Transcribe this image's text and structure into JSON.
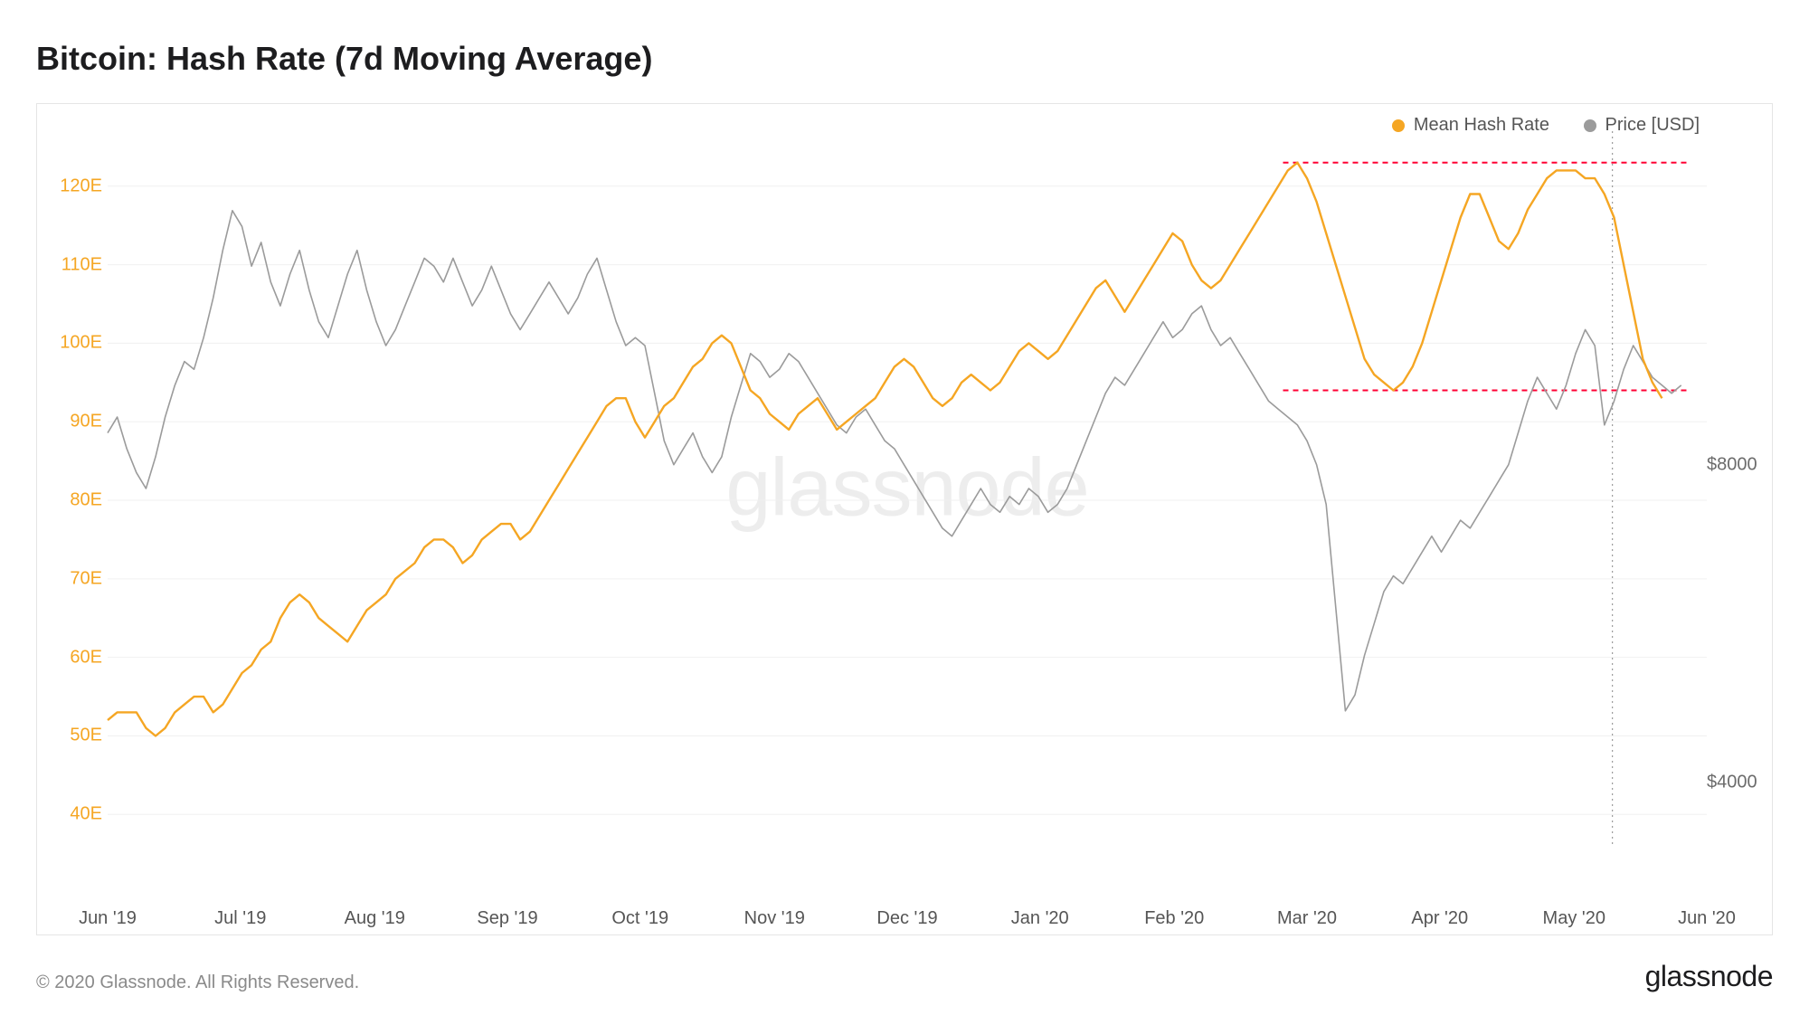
{
  "title": "Bitcoin: Hash Rate (7d Moving Average)",
  "copyright": "© 2020 Glassnode. All Rights Reserved.",
  "logo": "glassnode",
  "watermark": "glassnode",
  "legend": {
    "hash_label": "Mean Hash Rate",
    "hash_color": "#f5a623",
    "price_label": "Price [USD]",
    "price_color": "#9b9b9b"
  },
  "chart": {
    "background_color": "#ffffff",
    "border_color": "#e5e5e5",
    "grid_color": "#f0f0f0",
    "y_left": {
      "min": 36,
      "max": 127,
      "ticks": [
        40,
        50,
        60,
        70,
        80,
        90,
        100,
        110,
        120
      ],
      "tick_suffix": "E",
      "label_color": "#f5a623",
      "label_fontsize": 20
    },
    "y_right": {
      "min": 3200,
      "max": 12200,
      "ticks": [
        4000,
        8000
      ],
      "tick_prefix": "$",
      "label_color": "#6b6b6b",
      "label_fontsize": 20
    },
    "x": {
      "ticks": [
        {
          "t": 0.0,
          "label": "Jun '19"
        },
        {
          "t": 0.083,
          "label": "Jul '19"
        },
        {
          "t": 0.167,
          "label": "Aug '19"
        },
        {
          "t": 0.25,
          "label": "Sep '19"
        },
        {
          "t": 0.333,
          "label": "Oct '19"
        },
        {
          "t": 0.417,
          "label": "Nov '19"
        },
        {
          "t": 0.5,
          "label": "Dec '19"
        },
        {
          "t": 0.583,
          "label": "Jan '20"
        },
        {
          "t": 0.667,
          "label": "Feb '20"
        },
        {
          "t": 0.75,
          "label": "Mar '20"
        },
        {
          "t": 0.833,
          "label": "Apr '20"
        },
        {
          "t": 0.917,
          "label": "May '20"
        },
        {
          "t": 1.0,
          "label": "Jun '20"
        }
      ],
      "label_color": "#555555",
      "label_fontsize": 20
    },
    "cursor_line": {
      "t": 0.941,
      "color": "#888888",
      "dash": "2,4"
    },
    "reference_lines": [
      {
        "y_value": 123,
        "t_from": 0.735,
        "t_to": 0.99,
        "color": "#ff0033",
        "dash": "6,5",
        "width": 2
      },
      {
        "y_value": 94,
        "t_from": 0.735,
        "t_to": 0.99,
        "color": "#ff0033",
        "dash": "6,5",
        "width": 2
      }
    ],
    "hash_rate": {
      "color": "#f5a623",
      "width": 2.4,
      "points": [
        [
          0.0,
          52
        ],
        [
          0.006,
          53
        ],
        [
          0.012,
          53
        ],
        [
          0.018,
          53
        ],
        [
          0.024,
          51
        ],
        [
          0.03,
          50
        ],
        [
          0.036,
          51
        ],
        [
          0.042,
          53
        ],
        [
          0.048,
          54
        ],
        [
          0.054,
          55
        ],
        [
          0.06,
          55
        ],
        [
          0.066,
          53
        ],
        [
          0.072,
          54
        ],
        [
          0.078,
          56
        ],
        [
          0.084,
          58
        ],
        [
          0.09,
          59
        ],
        [
          0.096,
          61
        ],
        [
          0.102,
          62
        ],
        [
          0.108,
          65
        ],
        [
          0.114,
          67
        ],
        [
          0.12,
          68
        ],
        [
          0.126,
          67
        ],
        [
          0.132,
          65
        ],
        [
          0.138,
          64
        ],
        [
          0.144,
          63
        ],
        [
          0.15,
          62
        ],
        [
          0.156,
          64
        ],
        [
          0.162,
          66
        ],
        [
          0.168,
          67
        ],
        [
          0.174,
          68
        ],
        [
          0.18,
          70
        ],
        [
          0.186,
          71
        ],
        [
          0.192,
          72
        ],
        [
          0.198,
          74
        ],
        [
          0.204,
          75
        ],
        [
          0.21,
          75
        ],
        [
          0.216,
          74
        ],
        [
          0.222,
          72
        ],
        [
          0.228,
          73
        ],
        [
          0.234,
          75
        ],
        [
          0.24,
          76
        ],
        [
          0.246,
          77
        ],
        [
          0.252,
          77
        ],
        [
          0.258,
          75
        ],
        [
          0.264,
          76
        ],
        [
          0.27,
          78
        ],
        [
          0.276,
          80
        ],
        [
          0.282,
          82
        ],
        [
          0.288,
          84
        ],
        [
          0.294,
          86
        ],
        [
          0.3,
          88
        ],
        [
          0.306,
          90
        ],
        [
          0.312,
          92
        ],
        [
          0.318,
          93
        ],
        [
          0.324,
          93
        ],
        [
          0.33,
          90
        ],
        [
          0.336,
          88
        ],
        [
          0.342,
          90
        ],
        [
          0.348,
          92
        ],
        [
          0.354,
          93
        ],
        [
          0.36,
          95
        ],
        [
          0.366,
          97
        ],
        [
          0.372,
          98
        ],
        [
          0.378,
          100
        ],
        [
          0.384,
          101
        ],
        [
          0.39,
          100
        ],
        [
          0.396,
          97
        ],
        [
          0.402,
          94
        ],
        [
          0.408,
          93
        ],
        [
          0.414,
          91
        ],
        [
          0.42,
          90
        ],
        [
          0.426,
          89
        ],
        [
          0.432,
          91
        ],
        [
          0.438,
          92
        ],
        [
          0.444,
          93
        ],
        [
          0.45,
          91
        ],
        [
          0.456,
          89
        ],
        [
          0.462,
          90
        ],
        [
          0.468,
          91
        ],
        [
          0.474,
          92
        ],
        [
          0.48,
          93
        ],
        [
          0.486,
          95
        ],
        [
          0.492,
          97
        ],
        [
          0.498,
          98
        ],
        [
          0.504,
          97
        ],
        [
          0.51,
          95
        ],
        [
          0.516,
          93
        ],
        [
          0.522,
          92
        ],
        [
          0.528,
          93
        ],
        [
          0.534,
          95
        ],
        [
          0.54,
          96
        ],
        [
          0.546,
          95
        ],
        [
          0.552,
          94
        ],
        [
          0.558,
          95
        ],
        [
          0.564,
          97
        ],
        [
          0.57,
          99
        ],
        [
          0.576,
          100
        ],
        [
          0.582,
          99
        ],
        [
          0.588,
          98
        ],
        [
          0.594,
          99
        ],
        [
          0.6,
          101
        ],
        [
          0.606,
          103
        ],
        [
          0.612,
          105
        ],
        [
          0.618,
          107
        ],
        [
          0.624,
          108
        ],
        [
          0.63,
          106
        ],
        [
          0.636,
          104
        ],
        [
          0.642,
          106
        ],
        [
          0.648,
          108
        ],
        [
          0.654,
          110
        ],
        [
          0.66,
          112
        ],
        [
          0.666,
          114
        ],
        [
          0.672,
          113
        ],
        [
          0.678,
          110
        ],
        [
          0.684,
          108
        ],
        [
          0.69,
          107
        ],
        [
          0.696,
          108
        ],
        [
          0.702,
          110
        ],
        [
          0.708,
          112
        ],
        [
          0.714,
          114
        ],
        [
          0.72,
          116
        ],
        [
          0.726,
          118
        ],
        [
          0.732,
          120
        ],
        [
          0.738,
          122
        ],
        [
          0.744,
          123
        ],
        [
          0.75,
          121
        ],
        [
          0.756,
          118
        ],
        [
          0.762,
          114
        ],
        [
          0.768,
          110
        ],
        [
          0.774,
          106
        ],
        [
          0.78,
          102
        ],
        [
          0.786,
          98
        ],
        [
          0.792,
          96
        ],
        [
          0.798,
          95
        ],
        [
          0.804,
          94
        ],
        [
          0.81,
          95
        ],
        [
          0.816,
          97
        ],
        [
          0.822,
          100
        ],
        [
          0.828,
          104
        ],
        [
          0.834,
          108
        ],
        [
          0.84,
          112
        ],
        [
          0.846,
          116
        ],
        [
          0.852,
          119
        ],
        [
          0.858,
          119
        ],
        [
          0.864,
          116
        ],
        [
          0.87,
          113
        ],
        [
          0.876,
          112
        ],
        [
          0.882,
          114
        ],
        [
          0.888,
          117
        ],
        [
          0.894,
          119
        ],
        [
          0.9,
          121
        ],
        [
          0.906,
          122
        ],
        [
          0.912,
          122
        ],
        [
          0.918,
          122
        ],
        [
          0.924,
          121
        ],
        [
          0.93,
          121
        ],
        [
          0.936,
          119
        ],
        [
          0.942,
          116
        ],
        [
          0.948,
          110
        ],
        [
          0.954,
          104
        ],
        [
          0.96,
          98
        ],
        [
          0.966,
          95
        ],
        [
          0.972,
          93
        ]
      ]
    },
    "price": {
      "color": "#9b9b9b",
      "width": 1.6,
      "points": [
        [
          0.0,
          8400
        ],
        [
          0.006,
          8600
        ],
        [
          0.012,
          8200
        ],
        [
          0.018,
          7900
        ],
        [
          0.024,
          7700
        ],
        [
          0.03,
          8100
        ],
        [
          0.036,
          8600
        ],
        [
          0.042,
          9000
        ],
        [
          0.048,
          9300
        ],
        [
          0.054,
          9200
        ],
        [
          0.06,
          9600
        ],
        [
          0.066,
          10100
        ],
        [
          0.072,
          10700
        ],
        [
          0.078,
          11200
        ],
        [
          0.084,
          11000
        ],
        [
          0.09,
          10500
        ],
        [
          0.096,
          10800
        ],
        [
          0.102,
          10300
        ],
        [
          0.108,
          10000
        ],
        [
          0.114,
          10400
        ],
        [
          0.12,
          10700
        ],
        [
          0.126,
          10200
        ],
        [
          0.132,
          9800
        ],
        [
          0.138,
          9600
        ],
        [
          0.144,
          10000
        ],
        [
          0.15,
          10400
        ],
        [
          0.156,
          10700
        ],
        [
          0.162,
          10200
        ],
        [
          0.168,
          9800
        ],
        [
          0.174,
          9500
        ],
        [
          0.18,
          9700
        ],
        [
          0.186,
          10000
        ],
        [
          0.192,
          10300
        ],
        [
          0.198,
          10600
        ],
        [
          0.204,
          10500
        ],
        [
          0.21,
          10300
        ],
        [
          0.216,
          10600
        ],
        [
          0.222,
          10300
        ],
        [
          0.228,
          10000
        ],
        [
          0.234,
          10200
        ],
        [
          0.24,
          10500
        ],
        [
          0.246,
          10200
        ],
        [
          0.252,
          9900
        ],
        [
          0.258,
          9700
        ],
        [
          0.264,
          9900
        ],
        [
          0.27,
          10100
        ],
        [
          0.276,
          10300
        ],
        [
          0.282,
          10100
        ],
        [
          0.288,
          9900
        ],
        [
          0.294,
          10100
        ],
        [
          0.3,
          10400
        ],
        [
          0.306,
          10600
        ],
        [
          0.312,
          10200
        ],
        [
          0.318,
          9800
        ],
        [
          0.324,
          9500
        ],
        [
          0.33,
          9600
        ],
        [
          0.336,
          9500
        ],
        [
          0.342,
          8900
        ],
        [
          0.348,
          8300
        ],
        [
          0.354,
          8000
        ],
        [
          0.36,
          8200
        ],
        [
          0.366,
          8400
        ],
        [
          0.372,
          8100
        ],
        [
          0.378,
          7900
        ],
        [
          0.384,
          8100
        ],
        [
          0.39,
          8600
        ],
        [
          0.396,
          9000
        ],
        [
          0.402,
          9400
        ],
        [
          0.408,
          9300
        ],
        [
          0.414,
          9100
        ],
        [
          0.42,
          9200
        ],
        [
          0.426,
          9400
        ],
        [
          0.432,
          9300
        ],
        [
          0.438,
          9100
        ],
        [
          0.444,
          8900
        ],
        [
          0.45,
          8700
        ],
        [
          0.456,
          8500
        ],
        [
          0.462,
          8400
        ],
        [
          0.468,
          8600
        ],
        [
          0.474,
          8700
        ],
        [
          0.48,
          8500
        ],
        [
          0.486,
          8300
        ],
        [
          0.492,
          8200
        ],
        [
          0.498,
          8000
        ],
        [
          0.504,
          7800
        ],
        [
          0.51,
          7600
        ],
        [
          0.516,
          7400
        ],
        [
          0.522,
          7200
        ],
        [
          0.528,
          7100
        ],
        [
          0.534,
          7300
        ],
        [
          0.54,
          7500
        ],
        [
          0.546,
          7700
        ],
        [
          0.552,
          7500
        ],
        [
          0.558,
          7400
        ],
        [
          0.564,
          7600
        ],
        [
          0.57,
          7500
        ],
        [
          0.576,
          7700
        ],
        [
          0.582,
          7600
        ],
        [
          0.588,
          7400
        ],
        [
          0.594,
          7500
        ],
        [
          0.6,
          7700
        ],
        [
          0.606,
          8000
        ],
        [
          0.612,
          8300
        ],
        [
          0.618,
          8600
        ],
        [
          0.624,
          8900
        ],
        [
          0.63,
          9100
        ],
        [
          0.636,
          9000
        ],
        [
          0.642,
          9200
        ],
        [
          0.648,
          9400
        ],
        [
          0.654,
          9600
        ],
        [
          0.66,
          9800
        ],
        [
          0.666,
          9600
        ],
        [
          0.672,
          9700
        ],
        [
          0.678,
          9900
        ],
        [
          0.684,
          10000
        ],
        [
          0.69,
          9700
        ],
        [
          0.696,
          9500
        ],
        [
          0.702,
          9600
        ],
        [
          0.708,
          9400
        ],
        [
          0.714,
          9200
        ],
        [
          0.72,
          9000
        ],
        [
          0.726,
          8800
        ],
        [
          0.732,
          8700
        ],
        [
          0.738,
          8600
        ],
        [
          0.744,
          8500
        ],
        [
          0.75,
          8300
        ],
        [
          0.756,
          8000
        ],
        [
          0.762,
          7500
        ],
        [
          0.768,
          6200
        ],
        [
          0.774,
          4900
        ],
        [
          0.78,
          5100
        ],
        [
          0.786,
          5600
        ],
        [
          0.792,
          6000
        ],
        [
          0.798,
          6400
        ],
        [
          0.804,
          6600
        ],
        [
          0.81,
          6500
        ],
        [
          0.816,
          6700
        ],
        [
          0.822,
          6900
        ],
        [
          0.828,
          7100
        ],
        [
          0.834,
          6900
        ],
        [
          0.84,
          7100
        ],
        [
          0.846,
          7300
        ],
        [
          0.852,
          7200
        ],
        [
          0.858,
          7400
        ],
        [
          0.864,
          7600
        ],
        [
          0.87,
          7800
        ],
        [
          0.876,
          8000
        ],
        [
          0.882,
          8400
        ],
        [
          0.888,
          8800
        ],
        [
          0.894,
          9100
        ],
        [
          0.9,
          8900
        ],
        [
          0.906,
          8700
        ],
        [
          0.912,
          9000
        ],
        [
          0.918,
          9400
        ],
        [
          0.924,
          9700
        ],
        [
          0.93,
          9500
        ],
        [
          0.936,
          8500
        ],
        [
          0.942,
          8800
        ],
        [
          0.948,
          9200
        ],
        [
          0.954,
          9500
        ],
        [
          0.96,
          9300
        ],
        [
          0.966,
          9100
        ],
        [
          0.972,
          9000
        ],
        [
          0.978,
          8900
        ],
        [
          0.984,
          9000
        ]
      ]
    }
  }
}
